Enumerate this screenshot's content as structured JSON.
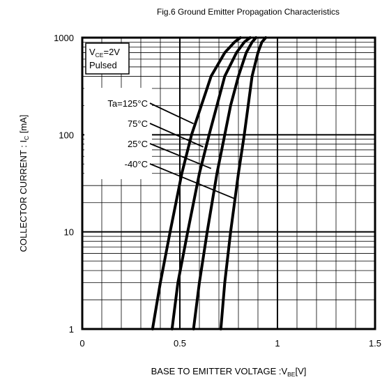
{
  "chart_data": {
    "type": "line",
    "title": "Fig.6 Ground Emitter Propagation Characteristics",
    "xlabel": {
      "main": "BASE TO EMITTER VOLTAGE :V",
      "sub": "BE",
      "unit": "[V]"
    },
    "ylabel": {
      "main": "COLLECTOR CURRENT : I",
      "sub": "C",
      "unit": " [mA]"
    },
    "xlim": [
      0,
      1.5
    ],
    "ylim": [
      1,
      1000
    ],
    "yscale": "log",
    "grid": true,
    "x_ticks": [
      {
        "value": 0,
        "label": "0"
      },
      {
        "value": 0.5,
        "label": "0.5"
      },
      {
        "value": 1,
        "label": "1"
      },
      {
        "value": 1.5,
        "label": "1.5"
      }
    ],
    "y_ticks": [
      {
        "value": 1,
        "label": "1"
      },
      {
        "value": 10,
        "label": "10"
      },
      {
        "value": 100,
        "label": "100"
      },
      {
        "value": 1000,
        "label": "1000"
      }
    ],
    "condition_box": {
      "line1_main": "V",
      "line1_sub": "CE",
      "line1_rest": "=2V",
      "line2": "Pulsed"
    },
    "series": [
      {
        "name": "Ta=125°C",
        "x": [
          0.36,
          0.4,
          0.45,
          0.51,
          0.56,
          0.61,
          0.66,
          0.73,
          0.78,
          0.81
        ],
        "y": [
          1,
          3,
          10,
          40,
          100,
          200,
          400,
          700,
          900,
          1000
        ]
      },
      {
        "name": "75°C",
        "x": [
          0.46,
          0.49,
          0.54,
          0.6,
          0.65,
          0.69,
          0.73,
          0.79,
          0.83,
          0.86
        ],
        "y": [
          1,
          3,
          10,
          40,
          100,
          200,
          400,
          700,
          900,
          1000
        ]
      },
      {
        "name": "25°C",
        "x": [
          0.57,
          0.6,
          0.64,
          0.69,
          0.73,
          0.76,
          0.8,
          0.84,
          0.87,
          0.89
        ],
        "y": [
          1,
          3,
          10,
          40,
          100,
          200,
          400,
          700,
          900,
          1000
        ]
      },
      {
        "name": "-40°C",
        "x": [
          0.71,
          0.73,
          0.76,
          0.8,
          0.83,
          0.85,
          0.87,
          0.9,
          0.92,
          0.94
        ],
        "y": [
          1,
          3,
          10,
          40,
          100,
          200,
          400,
          700,
          900,
          1000
        ]
      }
    ],
    "annotations": [
      {
        "label": "Ta=125°C",
        "target": {
          "x": 0.57,
          "y": 130
        }
      },
      {
        "label": "75°C",
        "target": {
          "x": 0.62,
          "y": 75
        }
      },
      {
        "label": "25°C",
        "target": {
          "x": 0.66,
          "y": 45
        }
      },
      {
        "label": "-40°C",
        "target": {
          "x": 0.78,
          "y": 22
        }
      }
    ]
  }
}
